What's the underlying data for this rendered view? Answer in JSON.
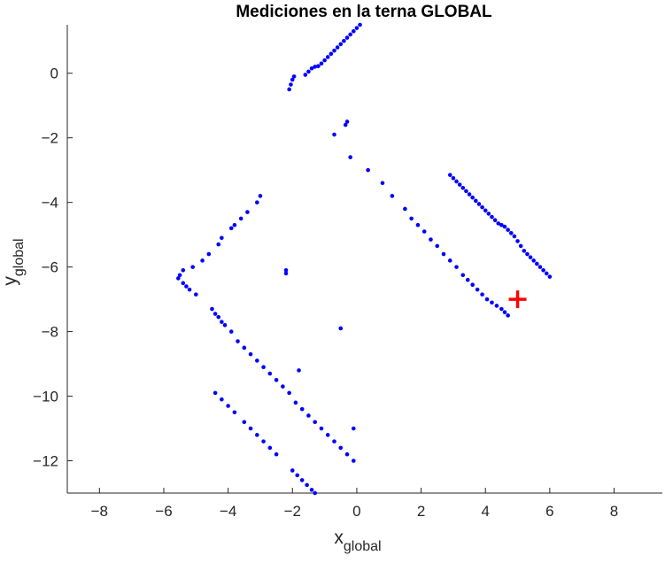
{
  "chart_data": {
    "type": "scatter",
    "title": "Mediciones en la terna GLOBAL",
    "xlabel": {
      "base": "x",
      "sub": "global"
    },
    "ylabel": {
      "base": "y",
      "sub": "global"
    },
    "xlim": [
      -9,
      9.5
    ],
    "ylim": [
      -13,
      1.5
    ],
    "xticks": [
      -8,
      -6,
      -4,
      -2,
      0,
      2,
      4,
      6,
      8
    ],
    "yticks": [
      0,
      -2,
      -4,
      -6,
      -8,
      -10,
      -12
    ],
    "grid": false,
    "colors": {
      "measurements": "#0000ff",
      "position": "#ff0000"
    },
    "series": [
      {
        "marker": "dot",
        "points": [
          [
            -2.1,
            -0.5
          ],
          [
            -2.05,
            -0.35
          ],
          [
            -2.0,
            -0.2
          ],
          [
            -1.95,
            -0.1
          ],
          [
            -1.6,
            -0.05
          ],
          [
            -1.5,
            0.05
          ],
          [
            -1.4,
            0.15
          ],
          [
            -1.3,
            0.2
          ],
          [
            -1.2,
            0.22
          ],
          [
            -1.1,
            0.3
          ],
          [
            -1.0,
            0.4
          ],
          [
            -0.9,
            0.5
          ],
          [
            -0.8,
            0.6
          ],
          [
            -0.7,
            0.7
          ],
          [
            -0.6,
            0.8
          ],
          [
            -0.5,
            0.9
          ],
          [
            -0.4,
            1.0
          ],
          [
            -0.3,
            1.1
          ],
          [
            -0.2,
            1.2
          ],
          [
            -0.1,
            1.3
          ],
          [
            0.0,
            1.4
          ],
          [
            0.1,
            1.5
          ],
          [
            -0.7,
            -1.9
          ],
          [
            -0.35,
            -1.6
          ],
          [
            -0.3,
            -1.5
          ],
          [
            -0.2,
            -2.6
          ],
          [
            0.35,
            -3.0
          ],
          [
            0.8,
            -3.4
          ],
          [
            1.1,
            -3.8
          ],
          [
            1.5,
            -4.2
          ],
          [
            1.7,
            -4.5
          ],
          [
            1.9,
            -4.7
          ],
          [
            2.1,
            -4.9
          ],
          [
            2.3,
            -5.15
          ],
          [
            2.5,
            -5.35
          ],
          [
            2.7,
            -5.6
          ],
          [
            2.9,
            -5.8
          ],
          [
            3.1,
            -6.0
          ],
          [
            3.3,
            -6.25
          ],
          [
            3.45,
            -6.4
          ],
          [
            3.6,
            -6.55
          ],
          [
            3.75,
            -6.7
          ],
          [
            3.9,
            -6.85
          ],
          [
            4.05,
            -7.0
          ],
          [
            4.2,
            -7.1
          ],
          [
            4.35,
            -7.2
          ],
          [
            4.5,
            -7.3
          ],
          [
            4.6,
            -7.4
          ],
          [
            4.7,
            -7.5
          ],
          [
            2.9,
            -3.15
          ],
          [
            3.0,
            -3.25
          ],
          [
            3.1,
            -3.35
          ],
          [
            3.2,
            -3.45
          ],
          [
            3.3,
            -3.55
          ],
          [
            3.4,
            -3.65
          ],
          [
            3.5,
            -3.75
          ],
          [
            3.6,
            -3.85
          ],
          [
            3.7,
            -3.95
          ],
          [
            3.8,
            -4.05
          ],
          [
            3.9,
            -4.15
          ],
          [
            4.0,
            -4.25
          ],
          [
            4.1,
            -4.35
          ],
          [
            4.2,
            -4.45
          ],
          [
            4.3,
            -4.55
          ],
          [
            4.4,
            -4.65
          ],
          [
            4.5,
            -4.7
          ],
          [
            4.6,
            -4.75
          ],
          [
            4.7,
            -4.85
          ],
          [
            4.8,
            -4.95
          ],
          [
            4.9,
            -5.05
          ],
          [
            5.0,
            -5.2
          ],
          [
            5.1,
            -5.35
          ],
          [
            5.2,
            -5.5
          ],
          [
            5.3,
            -5.6
          ],
          [
            5.4,
            -5.7
          ],
          [
            5.5,
            -5.8
          ],
          [
            5.6,
            -5.9
          ],
          [
            5.7,
            -6.0
          ],
          [
            5.8,
            -6.1
          ],
          [
            5.9,
            -6.2
          ],
          [
            6.0,
            -6.3
          ],
          [
            -3.0,
            -3.8
          ],
          [
            -3.1,
            -4.0
          ],
          [
            -3.4,
            -4.3
          ],
          [
            -3.6,
            -4.5
          ],
          [
            -3.8,
            -4.7
          ],
          [
            -3.9,
            -4.8
          ],
          [
            -4.2,
            -5.1
          ],
          [
            -4.3,
            -5.3
          ],
          [
            -4.6,
            -5.6
          ],
          [
            -4.8,
            -5.8
          ],
          [
            -5.1,
            -6.0
          ],
          [
            -5.4,
            -6.1
          ],
          [
            -5.5,
            -6.25
          ],
          [
            -5.55,
            -6.35
          ],
          [
            -5.4,
            -6.5
          ],
          [
            -5.3,
            -6.6
          ],
          [
            -5.2,
            -6.7
          ],
          [
            -5.0,
            -6.85
          ],
          [
            -2.2,
            -6.1
          ],
          [
            -2.2,
            -6.2
          ],
          [
            -4.5,
            -7.3
          ],
          [
            -4.4,
            -7.45
          ],
          [
            -4.3,
            -7.55
          ],
          [
            -4.2,
            -7.7
          ],
          [
            -4.1,
            -7.8
          ],
          [
            -3.9,
            -8.0
          ],
          [
            -3.7,
            -8.3
          ],
          [
            -3.5,
            -8.5
          ],
          [
            -3.3,
            -8.7
          ],
          [
            -3.1,
            -8.9
          ],
          [
            -2.9,
            -9.1
          ],
          [
            -2.7,
            -9.3
          ],
          [
            -2.5,
            -9.5
          ],
          [
            -2.3,
            -9.7
          ],
          [
            -2.1,
            -9.9
          ],
          [
            -1.9,
            -10.2
          ],
          [
            -1.7,
            -10.4
          ],
          [
            -1.5,
            -10.6
          ],
          [
            -1.3,
            -10.8
          ],
          [
            -1.1,
            -11.0
          ],
          [
            -0.9,
            -11.2
          ],
          [
            -0.7,
            -11.4
          ],
          [
            -0.5,
            -11.6
          ],
          [
            -0.3,
            -11.8
          ],
          [
            -0.1,
            -12.0
          ],
          [
            -1.8,
            -9.2
          ],
          [
            -0.5,
            -7.9
          ],
          [
            -0.1,
            -11.0
          ],
          [
            -4.4,
            -9.9
          ],
          [
            -4.2,
            -10.1
          ],
          [
            -4.0,
            -10.3
          ],
          [
            -3.8,
            -10.5
          ],
          [
            -3.5,
            -10.8
          ],
          [
            -3.3,
            -11.0
          ],
          [
            -3.1,
            -11.2
          ],
          [
            -2.9,
            -11.4
          ],
          [
            -2.7,
            -11.6
          ],
          [
            -2.5,
            -11.8
          ],
          [
            -2.0,
            -12.3
          ],
          [
            -1.85,
            -12.45
          ],
          [
            -1.7,
            -12.6
          ],
          [
            -1.55,
            -12.75
          ],
          [
            -1.4,
            -12.9
          ],
          [
            -1.3,
            -13.0
          ]
        ]
      },
      {
        "marker": "plus",
        "points": [
          [
            5.0,
            -7.0
          ]
        ]
      }
    ]
  }
}
